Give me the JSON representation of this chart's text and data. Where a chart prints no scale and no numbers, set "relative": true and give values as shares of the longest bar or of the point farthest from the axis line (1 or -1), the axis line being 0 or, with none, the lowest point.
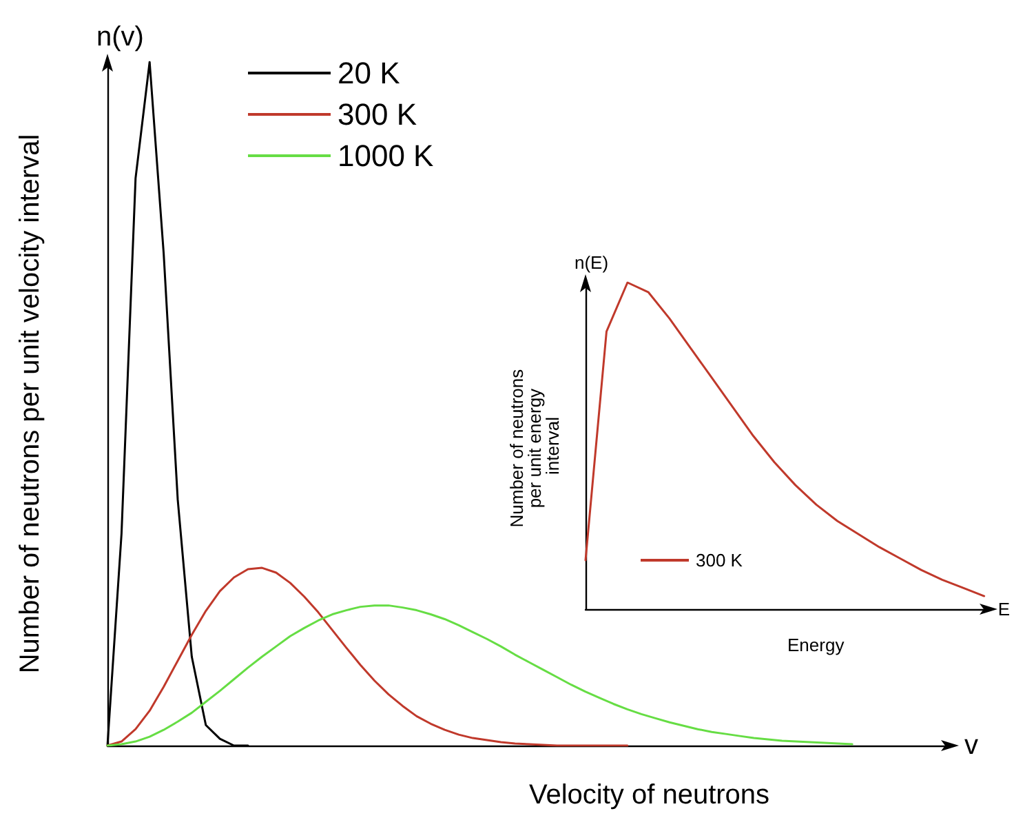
{
  "chart_data": [
    {
      "type": "line",
      "relative": true,
      "xlabel": "Velocity of neutrons",
      "ylabel": "Number of neutrons per unit velocity interval",
      "annotations": [
        "n(v)",
        "v"
      ],
      "legend": "top left",
      "line_style": "solid",
      "categories": [
        null,
        null,
        null,
        null,
        null,
        null,
        null,
        null,
        null,
        null,
        null,
        null,
        null,
        null,
        null,
        null,
        null,
        null,
        null,
        null,
        null,
        null,
        null,
        null,
        null,
        null,
        null,
        null,
        null,
        null,
        null,
        null,
        null,
        null,
        null,
        null,
        null,
        null,
        null,
        null,
        null,
        null,
        null,
        null,
        null,
        null,
        null,
        null,
        null,
        null,
        null,
        null,
        null,
        null,
        null,
        null,
        null,
        null,
        null,
        null,
        null
      ],
      "series": [
        {
          "name": "20 K",
          "color": "#000000",
          "values": [
            0,
            0.31,
            0.83,
            1,
            0.72,
            0.36,
            0.13,
            0.03,
            0.01,
            0,
            0,
            null,
            null,
            null,
            null,
            null,
            null,
            null,
            null,
            null,
            null,
            null,
            null,
            null,
            null,
            null,
            null,
            null,
            null,
            null,
            null,
            null,
            null,
            null,
            null,
            null,
            null,
            null,
            null,
            null,
            null,
            null,
            null,
            null,
            null,
            null,
            null,
            null,
            null,
            null,
            null,
            null,
            null,
            null,
            null,
            null,
            null,
            null,
            null,
            null,
            null
          ]
        },
        {
          "name": "300 K",
          "color": "#c0392b",
          "values": [
            0,
            0.006,
            0.024,
            0.051,
            0.086,
            0.124,
            0.162,
            0.197,
            0.226,
            0.246,
            0.258,
            0.26,
            0.253,
            0.238,
            0.218,
            0.195,
            0.169,
            0.143,
            0.118,
            0.095,
            0.075,
            0.058,
            0.043,
            0.032,
            0.023,
            0.016,
            0.011,
            0.008,
            0.005,
            0.003,
            0.002,
            0.001,
            0,
            0,
            0,
            0,
            0,
            0,
            null,
            null,
            null,
            null,
            null,
            null,
            null,
            null,
            null,
            null,
            null,
            null,
            null,
            null,
            null,
            null,
            null,
            null,
            null,
            null,
            null,
            null,
            null
          ]
        },
        {
          "name": "1000 K",
          "color": "#66dd44",
          "values": [
            0,
            0.002,
            0.006,
            0.013,
            0.023,
            0.035,
            0.048,
            0.064,
            0.08,
            0.097,
            0.114,
            0.13,
            0.145,
            0.16,
            0.172,
            0.183,
            0.192,
            0.198,
            0.203,
            0.205,
            0.205,
            0.202,
            0.198,
            0.192,
            0.185,
            0.176,
            0.166,
            0.156,
            0.145,
            0.133,
            0.122,
            0.111,
            0.1,
            0.089,
            0.079,
            0.07,
            0.061,
            0.053,
            0.046,
            0.04,
            0.034,
            0.029,
            0.024,
            0.02,
            0.017,
            0.014,
            0.011,
            0.009,
            0.007,
            0.006,
            0.005,
            0.004,
            0.003,
            0.002,
            null,
            null,
            null,
            null,
            null,
            null,
            null
          ]
        }
      ]
    },
    {
      "type": "line",
      "relative": true,
      "xlabel": "Energy",
      "ylabel": "Number of neutrons per unit energy interval",
      "annotations": [
        "n(E)",
        "E"
      ],
      "legend": "bottom left",
      "line_style": "solid",
      "categories": [
        null,
        null,
        null,
        null,
        null,
        null,
        null,
        null,
        null,
        null,
        null,
        null,
        null,
        null,
        null,
        null,
        null,
        null,
        null,
        null
      ],
      "series": [
        {
          "name": "300 K",
          "color": "#c0392b",
          "values": [
            0.15,
            0.85,
            1,
            0.97,
            0.89,
            0.8,
            0.71,
            0.62,
            0.53,
            0.45,
            0.38,
            0.32,
            0.27,
            0.23,
            0.19,
            0.155,
            0.12,
            0.09,
            0.065,
            0.04
          ]
        }
      ]
    }
  ]
}
